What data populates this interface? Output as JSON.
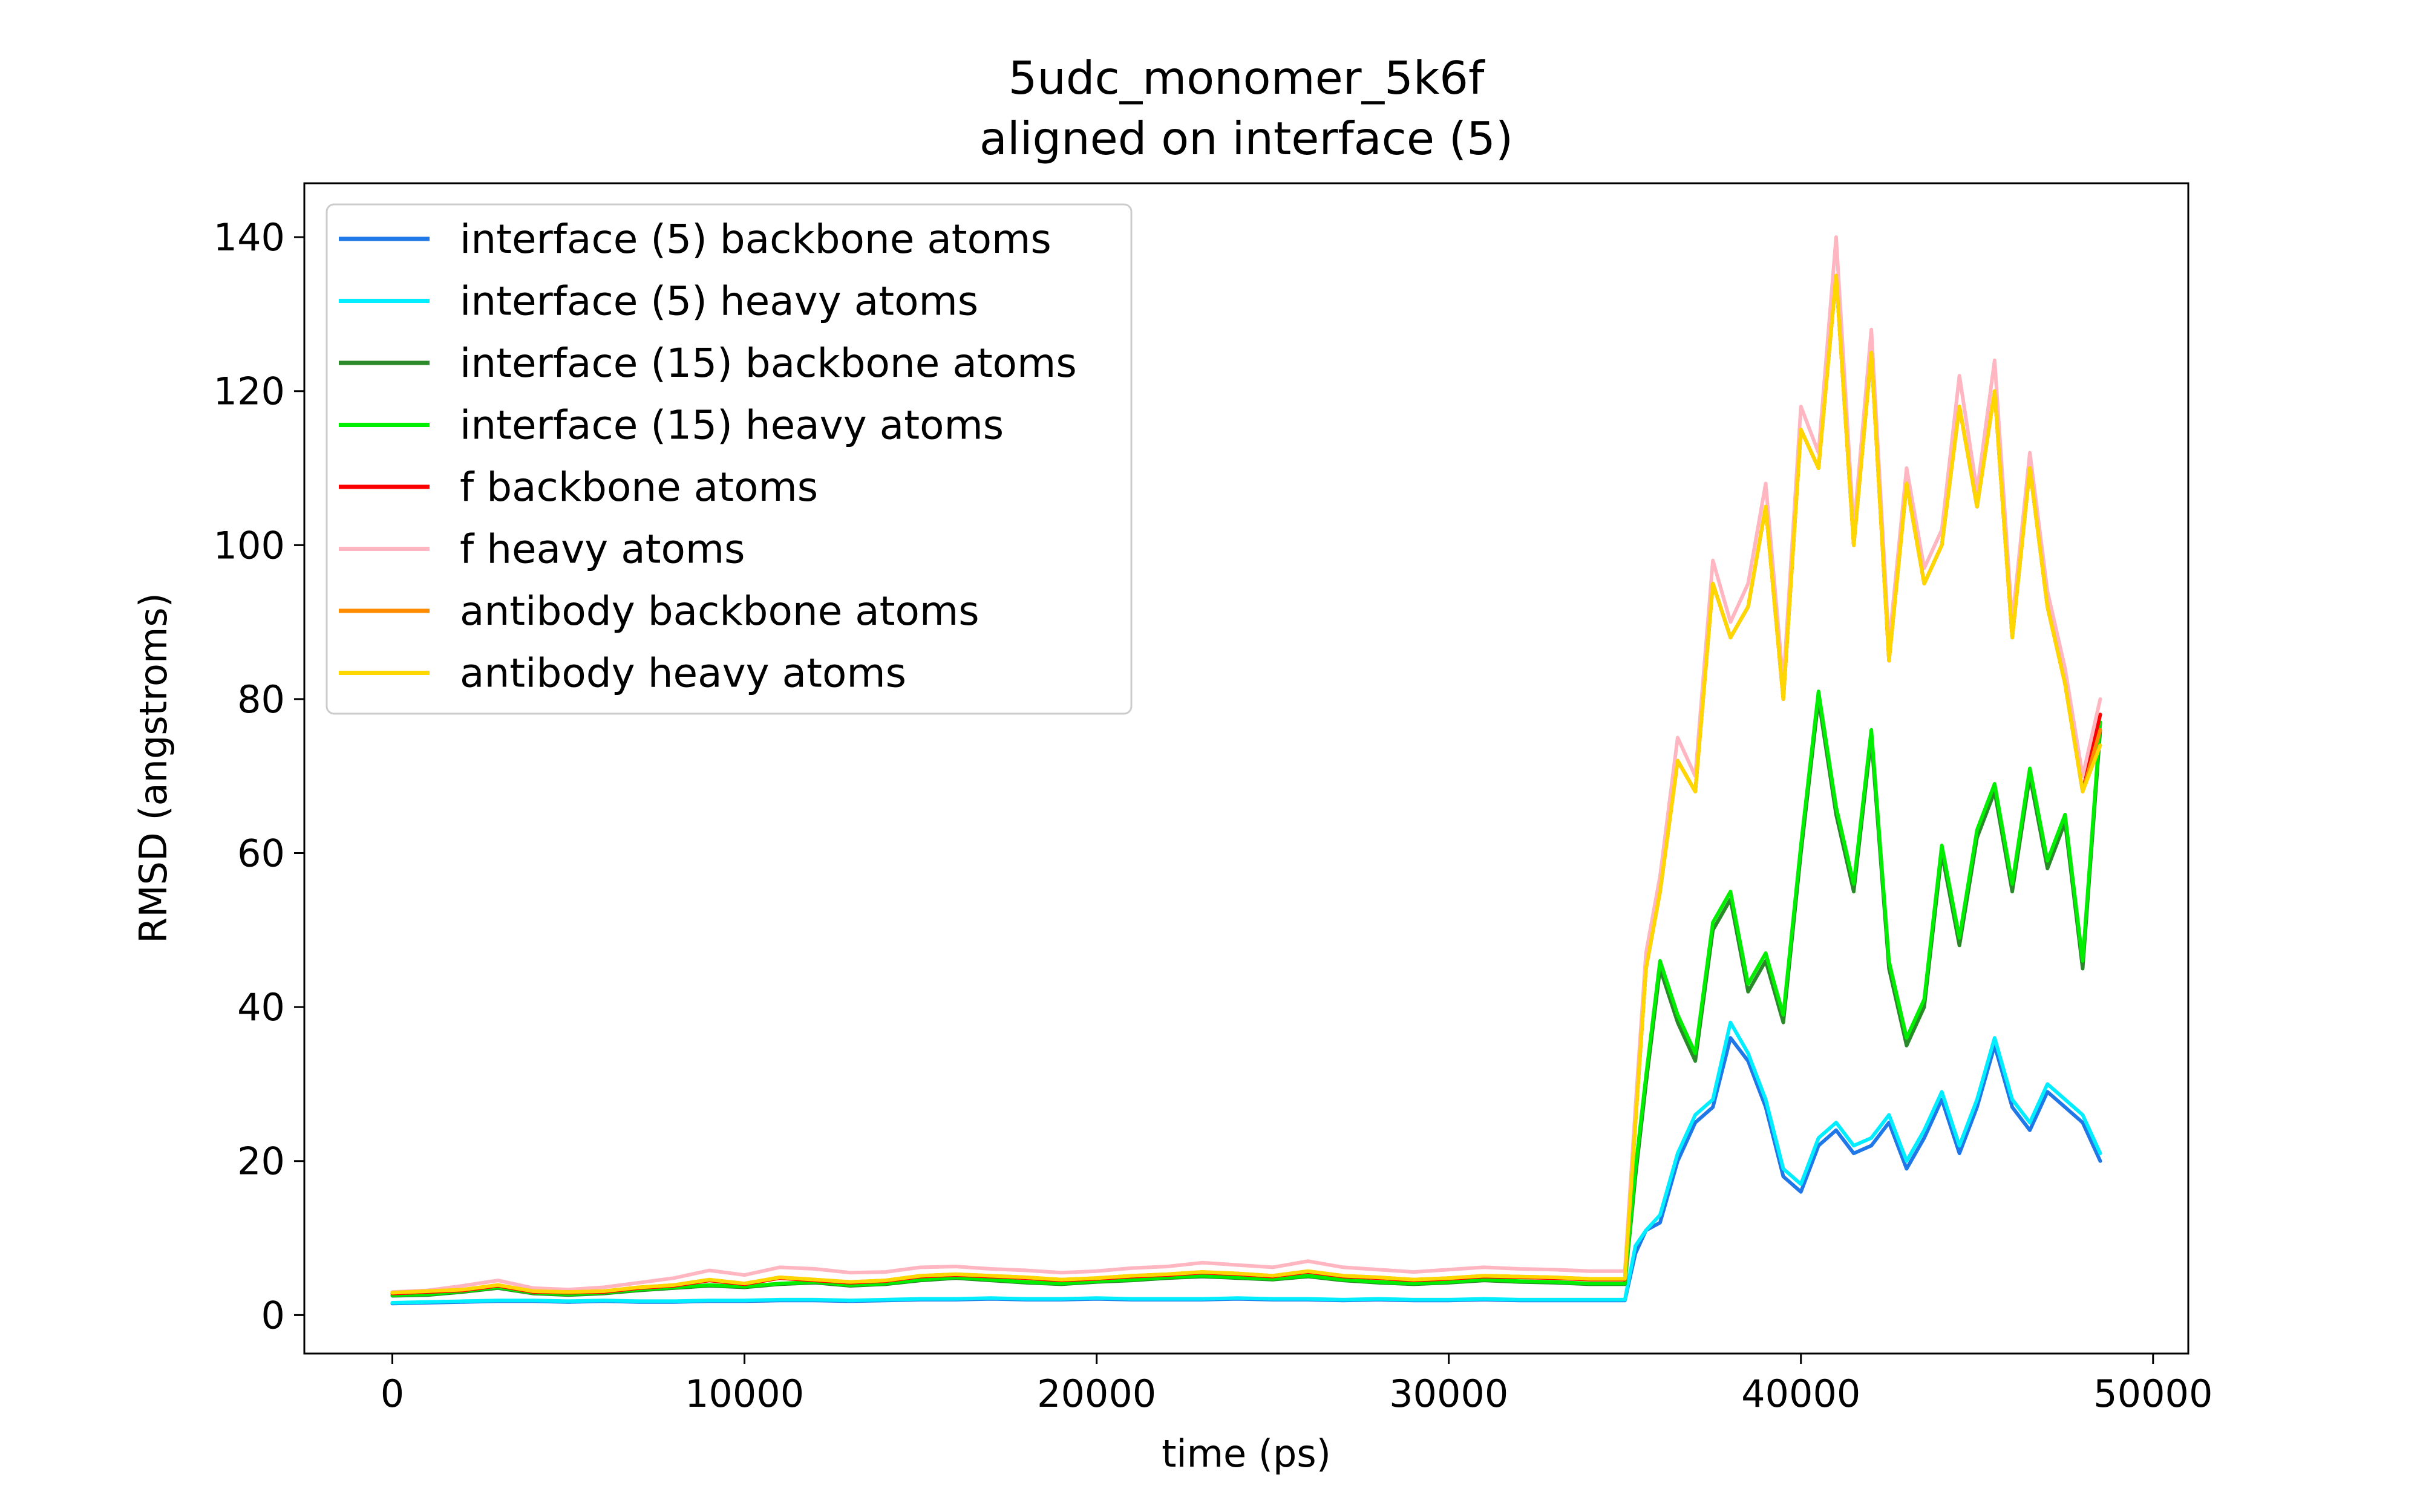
{
  "chart_data": {
    "type": "line",
    "title_line1": "5udc_monomer_5k6f",
    "title_line2": "aligned on interface (5)",
    "xlabel": "time (ps)",
    "ylabel": "RMSD (angstroms)",
    "xlim": [
      -2500,
      51000
    ],
    "ylim": [
      -5,
      147
    ],
    "xticks": [
      0,
      10000,
      20000,
      30000,
      40000,
      50000
    ],
    "xtick_labels": [
      "0",
      "10000",
      "20000",
      "30000",
      "40000",
      "50000"
    ],
    "yticks": [
      0,
      20,
      40,
      60,
      80,
      100,
      120,
      140
    ],
    "ytick_labels": [
      "0",
      "20",
      "40",
      "60",
      "80",
      "100",
      "120",
      "140"
    ],
    "grid": false,
    "legend_position": "top-left",
    "x": [
      0,
      1000,
      2000,
      3000,
      4000,
      5000,
      6000,
      7000,
      8000,
      9000,
      10000,
      11000,
      12000,
      13000,
      14000,
      15000,
      16000,
      17000,
      18000,
      19000,
      20000,
      21000,
      22000,
      23000,
      24000,
      25000,
      26000,
      27000,
      28000,
      29000,
      30000,
      31000,
      32000,
      33000,
      34000,
      35000,
      35300,
      35600,
      36000,
      36500,
      37000,
      37500,
      38000,
      38500,
      39000,
      39500,
      40000,
      40500,
      41000,
      41500,
      42000,
      42500,
      43000,
      43500,
      44000,
      44500,
      45000,
      45500,
      46000,
      46500,
      47000,
      47500,
      48000,
      48500
    ],
    "series": [
      {
        "name": "interface (5) backbone atoms",
        "color": "#1f77e8",
        "values": [
          1.5,
          1.6,
          1.7,
          1.8,
          1.8,
          1.7,
          1.8,
          1.7,
          1.7,
          1.8,
          1.8,
          1.9,
          1.9,
          1.8,
          1.9,
          2.0,
          2.0,
          2.1,
          2.0,
          2.0,
          2.1,
          2.0,
          2.0,
          2.0,
          2.1,
          2.0,
          2.0,
          1.9,
          2.0,
          1.9,
          1.9,
          2.0,
          1.9,
          1.9,
          1.9,
          1.9,
          8,
          11,
          12,
          20,
          25,
          27,
          36,
          33,
          27,
          18,
          16,
          22,
          24,
          21,
          22,
          25,
          19,
          23,
          28,
          21,
          27,
          35,
          27,
          24,
          29,
          27,
          25,
          20
        ]
      },
      {
        "name": "interface (5) heavy atoms",
        "color": "#00eeff",
        "values": [
          1.6,
          1.7,
          1.8,
          1.9,
          1.9,
          1.8,
          1.9,
          1.8,
          1.8,
          1.9,
          1.9,
          2.0,
          2.0,
          1.9,
          2.0,
          2.1,
          2.1,
          2.2,
          2.1,
          2.1,
          2.2,
          2.1,
          2.1,
          2.1,
          2.2,
          2.1,
          2.1,
          2.0,
          2.1,
          2.0,
          2.0,
          2.1,
          2.0,
          2.0,
          2.0,
          2.0,
          9,
          11,
          13,
          21,
          26,
          28,
          38,
          34,
          28,
          19,
          17,
          23,
          25,
          22,
          23,
          26,
          20,
          24,
          29,
          22,
          28,
          36,
          28,
          25,
          30,
          28,
          26,
          21
        ]
      },
      {
        "name": "interface (15) backbone atoms",
        "color": "#2a8a2a",
        "values": [
          2.5,
          2.6,
          3.0,
          3.5,
          2.8,
          2.6,
          2.8,
          3.2,
          3.5,
          3.8,
          3.6,
          4.0,
          4.2,
          3.8,
          4.0,
          4.5,
          4.8,
          4.5,
          4.2,
          4.0,
          4.3,
          4.5,
          4.8,
          5.0,
          4.8,
          4.6,
          5.0,
          4.5,
          4.2,
          4.0,
          4.2,
          4.5,
          4.3,
          4.2,
          4.0,
          4.0,
          18,
          30,
          45,
          38,
          33,
          50,
          54,
          42,
          46,
          38,
          60,
          80,
          65,
          55,
          75,
          45,
          35,
          40,
          60,
          48,
          62,
          68,
          55,
          70,
          58,
          64,
          45,
          76
        ]
      },
      {
        "name": "interface (15) heavy atoms",
        "color": "#00ee00",
        "values": [
          2.6,
          2.7,
          3.1,
          3.6,
          2.9,
          2.7,
          2.9,
          3.3,
          3.6,
          3.9,
          3.7,
          4.1,
          4.3,
          3.9,
          4.1,
          4.6,
          4.9,
          4.6,
          4.3,
          4.1,
          4.4,
          4.6,
          4.9,
          5.1,
          4.9,
          4.7,
          5.1,
          4.6,
          4.3,
          4.1,
          4.3,
          4.6,
          4.4,
          4.3,
          4.1,
          4.1,
          19,
          31,
          46,
          39,
          34,
          51,
          55,
          43,
          47,
          39,
          61,
          81,
          66,
          56,
          76,
          46,
          36,
          41,
          61,
          49,
          63,
          69,
          56,
          71,
          59,
          65,
          46,
          77
        ]
      },
      {
        "name": "f backbone atoms",
        "color": "#ff0000",
        "values": [
          2.8,
          3.0,
          3.2,
          3.8,
          3.0,
          2.9,
          3.0,
          3.5,
          3.8,
          4.5,
          4.0,
          4.8,
          4.5,
          4.2,
          4.4,
          5.0,
          5.2,
          5.0,
          4.8,
          4.5,
          4.7,
          5.0,
          5.2,
          5.5,
          5.3,
          5.0,
          5.6,
          5.0,
          4.8,
          4.5,
          4.7,
          5.0,
          4.9,
          4.8,
          4.6,
          4.6,
          25,
          45,
          55,
          72,
          68,
          95,
          88,
          92,
          105,
          80,
          115,
          110,
          135,
          100,
          125,
          85,
          108,
          95,
          100,
          118,
          105,
          120,
          88,
          110,
          92,
          82,
          68,
          78
        ]
      },
      {
        "name": "f heavy atoms",
        "color": "#ffb6c1",
        "values": [
          3.0,
          3.2,
          3.8,
          4.5,
          3.5,
          3.3,
          3.6,
          4.2,
          4.8,
          5.8,
          5.2,
          6.2,
          6.0,
          5.5,
          5.6,
          6.2,
          6.3,
          6.0,
          5.8,
          5.5,
          5.7,
          6.1,
          6.3,
          6.8,
          6.5,
          6.2,
          7.0,
          6.2,
          5.9,
          5.6,
          5.9,
          6.2,
          6.0,
          5.9,
          5.7,
          5.7,
          27,
          47,
          57,
          75,
          70,
          98,
          90,
          95,
          108,
          82,
          118,
          112,
          140,
          102,
          128,
          87,
          110,
          97,
          102,
          122,
          107,
          124,
          90,
          112,
          94,
          84,
          70,
          80
        ]
      },
      {
        "name": "antibody backbone atoms",
        "color": "#ff8c00",
        "values": [
          2.9,
          3.1,
          3.3,
          3.9,
          3.1,
          3.0,
          3.1,
          3.6,
          3.9,
          4.6,
          4.1,
          4.9,
          4.6,
          4.3,
          4.5,
          5.1,
          5.3,
          5.1,
          4.9,
          4.6,
          4.8,
          5.1,
          5.3,
          5.6,
          5.4,
          5.1,
          5.7,
          5.1,
          4.9,
          4.6,
          4.8,
          5.1,
          5.0,
          4.9,
          4.7,
          4.7,
          25,
          45,
          55,
          72,
          68,
          95,
          88,
          92,
          105,
          80,
          115,
          110,
          135,
          100,
          125,
          85,
          108,
          95,
          100,
          118,
          105,
          120,
          88,
          110,
          92,
          82,
          68,
          76
        ]
      },
      {
        "name": "antibody heavy atoms",
        "color": "#ffd700",
        "values": [
          2.9,
          3.1,
          3.3,
          3.9,
          3.1,
          3.0,
          3.1,
          3.6,
          3.9,
          4.6,
          4.1,
          4.9,
          4.6,
          4.3,
          4.5,
          5.1,
          5.3,
          5.1,
          4.9,
          4.6,
          4.8,
          5.1,
          5.3,
          5.6,
          5.4,
          5.1,
          5.7,
          5.1,
          4.9,
          4.6,
          4.8,
          5.1,
          5.0,
          4.9,
          4.7,
          4.7,
          25,
          45,
          55,
          72,
          68,
          95,
          88,
          92,
          105,
          80,
          115,
          110,
          135,
          100,
          125,
          85,
          108,
          95,
          100,
          118,
          105,
          120,
          88,
          110,
          92,
          82,
          68,
          74
        ]
      }
    ]
  }
}
